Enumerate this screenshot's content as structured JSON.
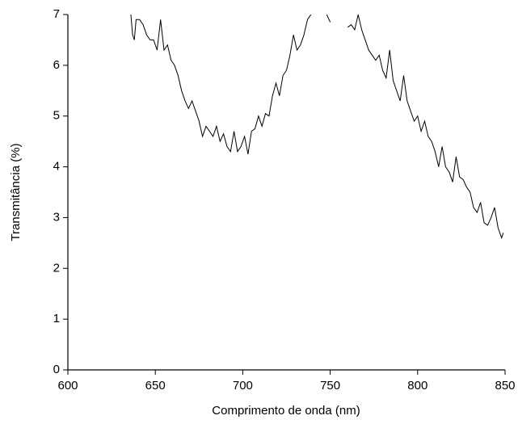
{
  "chart_data": {
    "type": "line",
    "x_label": "Comprimento de onda (nm)",
    "y_label": "Transmitância (%)",
    "x": [
      636,
      637,
      638,
      639,
      641,
      643,
      645,
      647,
      649,
      651,
      653,
      655,
      657,
      659,
      661,
      663,
      665,
      667,
      669,
      671,
      673,
      675,
      677,
      679,
      681,
      683,
      685,
      687,
      689,
      691,
      693,
      695,
      697,
      699,
      701,
      703,
      705,
      707,
      709,
      711,
      713,
      715,
      717,
      719,
      721,
      723,
      725,
      727,
      729,
      731,
      733,
      735,
      737,
      739,
      744,
      748,
      750,
      753,
      760,
      762,
      764,
      766,
      768,
      770,
      772,
      774,
      776,
      778,
      780,
      782,
      784,
      786,
      788,
      790,
      792,
      794,
      796,
      798,
      800,
      802,
      804,
      806,
      808,
      810,
      812,
      814,
      816,
      818,
      820,
      822,
      824,
      826,
      828,
      830,
      832,
      834,
      836,
      838,
      840,
      842,
      844,
      846,
      848,
      849
    ],
    "series": [
      {
        "color": "#000000",
        "values": [
          7.0,
          6.6,
          6.5,
          6.9,
          6.9,
          6.8,
          6.6,
          6.5,
          6.5,
          6.3,
          6.9,
          6.3,
          6.4,
          6.1,
          6.0,
          5.8,
          5.5,
          5.3,
          5.15,
          5.3,
          5.1,
          4.9,
          4.6,
          4.8,
          4.7,
          4.6,
          4.8,
          4.5,
          4.65,
          4.4,
          4.3,
          4.7,
          4.3,
          4.4,
          4.6,
          4.25,
          4.7,
          4.75,
          5.0,
          4.8,
          5.05,
          5.0,
          5.4,
          5.65,
          5.4,
          5.8,
          5.9,
          6.2,
          6.6,
          6.3,
          6.4,
          6.6,
          6.9,
          7.0,
          null,
          7.0,
          6.85,
          null,
          6.75,
          6.8,
          6.7,
          7.0,
          6.7,
          6.5,
          6.3,
          6.2,
          6.1,
          6.2,
          5.9,
          5.75,
          6.3,
          5.7,
          5.5,
          5.3,
          5.8,
          5.3,
          5.1,
          4.9,
          5.0,
          4.7,
          4.9,
          4.6,
          4.5,
          4.3,
          4.0,
          4.4,
          4.0,
          3.9,
          3.7,
          4.2,
          3.8,
          3.75,
          3.6,
          3.5,
          3.2,
          3.1,
          3.3,
          2.9,
          2.85,
          3.0,
          3.2,
          2.8,
          2.6,
          2.7
        ]
      }
    ],
    "xlim": [
      600,
      850
    ],
    "xticks": [
      600,
      650,
      700,
      750,
      800,
      850
    ],
    "ylim": [
      0,
      7
    ],
    "yticks": [
      0,
      1,
      2,
      3,
      4,
      5,
      6,
      7
    ]
  }
}
